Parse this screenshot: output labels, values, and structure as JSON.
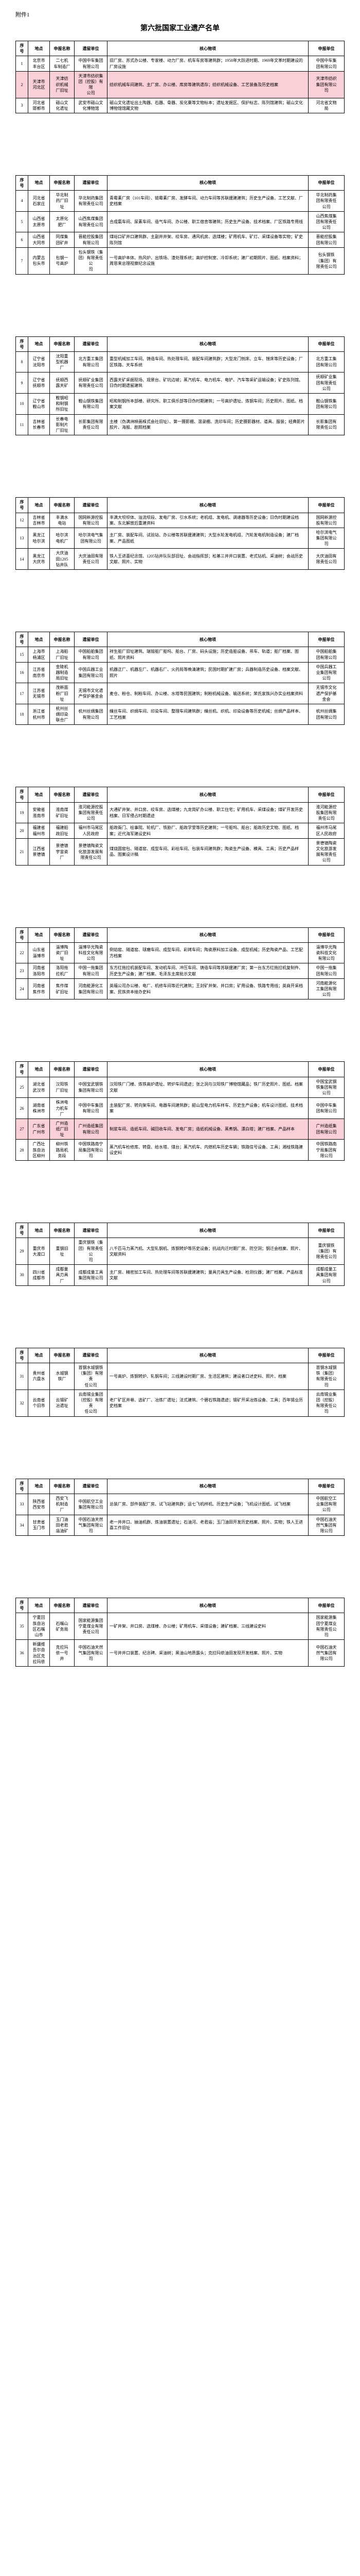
{
  "attachment_label": "附件1",
  "title": "第六批国家工业遗产名单",
  "headers": [
    "序号",
    "地点",
    "申报名称",
    "遗留单位",
    "核心物项",
    "申报单位"
  ],
  "colors": {
    "highlight_bg": "#f9cfd8",
    "border": "#000000",
    "text": "#000000",
    "bg": "#ffffff"
  },
  "fonts": {
    "body_pt": 8,
    "title_pt": 14,
    "label_pt": 11
  },
  "pages": [
    [
      {
        "seq": "1",
        "loc": "北京市\n丰台区",
        "name": "二七机\n车制造厂",
        "unit": "中国中车集团\n有限公司",
        "desc": "旧厂房、苏式办公楼、专家楼、动力厂房、机车车房等建筑群；1958年大跃进时期、1969年文革时期建设的厂房设施",
        "neg": "中国中车集\n团有限公司"
      },
      {
        "seq": "2",
        "loc": "天津市\n河北区",
        "name": "天津纺\n织机械\n厂旧址",
        "unit": "天津市纺织集\n团（控股）有限\n公司",
        "desc": "纺织机械车间建筑、主厂房、办公楼、库房等建筑遗存；纺织机械设备、工艺装备及历史档案",
        "neg": "天津市纺织\n集团有限公\n司",
        "highlight": true
      },
      {
        "seq": "3",
        "loc": "河北省\n邯郸市",
        "name": "磁山文\n化遗址",
        "unit": "武安市磁山文\n化博物馆",
        "desc": "磁山文化遗址出土陶器、石器、骨器、炭化粟等文物标本；遗址发掘区、保护标志、陈列馆建筑；磁山文化博物馆馆藏文物",
        "neg": "河北省文物\n局"
      }
    ],
    [
      {
        "seq": "4",
        "loc": "河北省\n石家庄",
        "name": "华北制\n药厂旧\n址",
        "unit": "华北制药集团\n有限责任公司",
        "desc": "青霉素厂房（101车间）、链霉素厂房、发酵车间、动力车间等苏联援建建筑；历史生产设备、工艺文献、厂史档案",
        "neg": "华北制药集\n团有限责任\n公司"
      },
      {
        "seq": "5",
        "loc": "山西省\n太原市",
        "name": "太原化\n肥厂",
        "unit": "山西焦煤集团\n有限责任公司",
        "desc": "合成氨车间、尿素车间、造气车间、办公楼、职工宿舍等建筑；历史生产设备、技术档案、厂区铁路专用线",
        "neg": "山西焦煤集\n团有限责任\n公司"
      },
      {
        "seq": "6",
        "loc": "山西省\n大同市",
        "name": "同煤集\n团矿井",
        "unit": "晋能控股集团\n有限公司",
        "desc": "煤峪口矿井口建筑群、主副井井架、绞车房、通风机房、选煤楼；矿用机车、矿灯、采煤设备等实物；矿史陈列馆",
        "neg": "晋能控股集\n团有限公司"
      },
      {
        "seq": "7",
        "loc": "内蒙古\n包头市",
        "name": "包钢一\n号高炉",
        "unit": "包头钢铁（集\n团）有限责任公\n司",
        "desc": "一号高炉本体、热风炉、出铁场、渣处理系统；高炉控制室、冷却系统；建厂初期照片、图纸、档案资料；周恩来总理视察纪念设施",
        "neg": "包头钢铁\n（集团）有\n限责任公司"
      }
    ],
    [
      {
        "seq": "8",
        "loc": "辽宁省\n沈阳市",
        "name": "沈阳重\n型机器\n厂",
        "unit": "北方重工集团\n有限公司",
        "desc": "重型机械加工车间、铸造车间、热处理车间、装配车间建筑群；大型龙门刨床、立车、镗床等历史设备；厂区铁路、天车系统",
        "neg": "北方重工集\n团有限公司"
      },
      {
        "seq": "9",
        "loc": "辽宁省\n抚顺市",
        "name": "抚顺西\n露天矿",
        "unit": "抚顺矿业集团\n有限责任公司",
        "desc": "西露天矿采掘现场、观景台、矿坑边坡；蒸汽机车、电力机车、电铲、汽车等采矿运输设备；矿史陈列馆、日伪时期遗留建筑",
        "neg": "抚顺矿业集\n团有限责任\n公司"
      },
      {
        "seq": "10",
        "loc": "辽宁省\n鞍山市",
        "name": "鞍钢昭\n和制钢\n所旧址",
        "unit": "鞍山钢铁集团\n有限公司",
        "desc": "昭和制钢所本部楼、研究所、职工俱乐部等日伪时期建筑；一号高炉遗址、炼钢车间；历史照片、图纸、档案文献",
        "neg": "鞍山钢铁集\n团有限公司"
      },
      {
        "seq": "11",
        "loc": "吉林省\n长春市",
        "name": "长春电\n影制片\n厂旧址",
        "unit": "长影集团有限\n责任公司",
        "desc": "主楼（伪满洲映画株式会社旧址）、第一摄影棚、混录棚、洗印车间；历史摄影器材、道具、服装；经典影片胶片、海报、剧照档案",
        "neg": "长影集团有\n限责任公司"
      }
    ],
    [
      {
        "seq": "12",
        "loc": "吉林省\n吉林市",
        "name": "丰满水\n电站",
        "unit": "国网新源控股\n有限公司",
        "desc": "丰满大坝坝体、溢流坝段、发电厂房、引水系统；老机组、发电机、调速器等历史设备；日伪时期建设档案、东北解放后重建资料",
        "neg": "国网新源控\n股有限公司"
      },
      {
        "seq": "13",
        "loc": "黑龙江\n哈尔滨",
        "name": "哈尔滨\n电机厂",
        "unit": "哈尔滨电气集\n团有限公司",
        "desc": "主厂房、装配车间、试验站、办公楼等苏联援建建筑；大型水轮发电机组、汽轮发电机制造设备；建厂档案、产品图纸",
        "neg": "哈尔滨电气\n集团有限公\n司"
      },
      {
        "seq": "14",
        "loc": "黑龙江\n大庆市",
        "name": "大庆油\n田1205\n钻井队",
        "unit": "大庆油田有限\n责任公司",
        "desc": "铁人王进喜纪念馆、1205钻井队队部旧址、会战指挥部；松基三井井口装置、老式钻机、采油树；会战历史文献、照片、实物",
        "neg": "大庆油田有\n限责任公司"
      }
    ],
    [
      {
        "seq": "15",
        "loc": "上海市\n杨浦区",
        "name": "上海船\n厂旧址",
        "unit": "中国船舶集团\n有限公司",
        "desc": "祥生船厂旧址建筑、瑞镕船厂船坞、船台、厂房、码头设施；历史造船设备、吊车、轨道；船厂档案、图纸、照片资料",
        "neg": "中国船舶集\n团有限公司"
      },
      {
        "seq": "16",
        "loc": "江苏省\n南京市",
        "name": "金陵机\n器制造\n局旧址",
        "unit": "中国兵器工业\n集团有限公司",
        "desc": "机器正厂、机器左厂、机器右厂、火药局等晚清建筑；民国时期扩建厂房；兵器制造历史设备、档案文献、照片",
        "neg": "中国兵器工\n业集团有限\n公司"
      },
      {
        "seq": "17",
        "loc": "江苏省\n无锡市",
        "name": "茂新面\n粉厂旧\n址",
        "unit": "无锡市文化遗\n产保护基金会",
        "desc": "麦仓、粉仓、制粉车间、办公楼、水塔等民国建筑；制粉机械设备、输送系统；荣氏家族兴办实业档案资料",
        "neg": "无锡市文化\n遗产保护基\n金会"
      },
      {
        "seq": "18",
        "loc": "浙江省\n杭州市",
        "name": "杭州丝\n绸印染\n联合厂",
        "unit": "杭州丝绸集团\n有限公司",
        "desc": "缫丝车间、织绸车间、印染车间、整理车间建筑群；缫丝机、织机、印染设备等历史机械；丝绸产品样本、工艺档案",
        "neg": "杭州丝绸集\n团有限公司"
      }
    ],
    [
      {
        "seq": "19",
        "loc": "安徽省\n淮南市",
        "name": "淮南煤\n矿旧址",
        "unit": "淮河能源控股\n集团有限责任\n公司",
        "desc": "大通矿井架、井口房、绞车房、选煤楼；九龙岗矿办公楼、职工住宅；矿用机车、采煤设备；煤矿开发历史档案、日军侵占时期遗迹",
        "neg": "淮河能源控\n股集团有限\n责任公司"
      },
      {
        "seq": "20",
        "loc": "福建省\n福州市",
        "name": "福建船\n政旧址",
        "unit": "福州市马尾区\n人民政府",
        "desc": "船政衙门、绘事院、轮机厂、铁胁厂、船政学堂等历史建筑；一号船坞、船台；船政历史文物、图纸、档案；近代海军建设史料",
        "neg": "福州市马尾\n区人民政府"
      },
      {
        "seq": "21",
        "loc": "江西省\n景德镇",
        "name": "景德镇\n宇宙瓷\n厂",
        "unit": "景德镇陶瓷文\n化旅游发展有\n限责任公司",
        "desc": "煤烧圆窑包、隧道窑、成型车间、彩绘车间、包装车间建筑群；陶瓷生产设备、模具、工具；历史产品样品、图案设计稿",
        "neg": "景德镇陶瓷\n文化旅游发\n展有限责任\n公司"
      }
    ],
    [
      {
        "seq": "22",
        "loc": "山东省\n淄博市",
        "name": "淄博陶\n瓷厂旧\n址",
        "unit": "淄博华光陶瓷\n科技文化有限\n公司",
        "desc": "倒焰窑、隧道窑、球磨车间、成型车间、彩烤车间；陶瓷原料加工设备、成型机械；历史陶瓷产品、工艺配方档案",
        "neg": "淄博华光陶\n瓷科技文化\n有限公司"
      },
      {
        "seq": "23",
        "loc": "河南省\n洛阳市",
        "name": "洛阳拖\n拉机厂",
        "unit": "中国一拖集团\n有限公司",
        "desc": "东方红拖拉机装配车间、发动机车间、冲压车间、铸造车间等苏联援建厂房；第一台东方红拖拉机复制件、历史生产设备；建厂档案、毛泽东主席批示文献",
        "neg": "中国一拖集\n团有限公司"
      },
      {
        "seq": "24",
        "loc": "河南省\n焦作市",
        "name": "焦作煤\n矿旧址",
        "unit": "河南能源化工\n集团有限公司",
        "desc": "英福公司办公楼、电厂、机修车间等近代建筑；王封矿井架、井口房；矿用设备、铁路专用线；英商开采档案、民族资本接办史料",
        "neg": "河南能源化\n工集团有限\n公司"
      }
    ],
    [
      {
        "seq": "25",
        "loc": "湖北省\n武汉市",
        "name": "汉阳铁\n厂旧址",
        "unit": "中国宝武钢铁\n集团有限公司",
        "desc": "汉阳铁厂门楼、炼铁高炉遗址、转炉车间遗迹；张之洞与汉阳铁厂博物馆藏品；铁厂历史照片、图纸、档案文献",
        "neg": "中国宝武钢\n铁集团有限\n公司"
      },
      {
        "seq": "26",
        "loc": "湖南省\n株洲市",
        "name": "株洲电\n力机车\n厂",
        "unit": "中国中车集团\n有限公司",
        "desc": "主装配厂房、转向架车间、电器车间建筑群；韶山型电力机车样车、历史生产设备；机车设计图纸、技术档案",
        "neg": "中国中车集\n团有限公司"
      },
      {
        "seq": "27",
        "loc": "广东省\n广州市",
        "name": "广州造\n纸厂旧\n址",
        "unit": "广州造纸集团\n有限公司",
        "desc": "制浆车间、造纸车间、碱回收车间、发电厂房；造纸机械设备、蒸煮锅、漂白塔；建厂档案、产品样本",
        "neg": "广州造纸集\n团有限公司",
        "highlight": true
      },
      {
        "seq": "28",
        "loc": "广西壮\n族自治\n区柳州",
        "name": "柳州铁\n路局机\n务段",
        "unit": "中国铁路南宁\n局集团有限公\n司",
        "desc": "蒸汽机车检修库、转盘、给水塔、煤台；蒸汽机车、内燃机车历史车辆；铁路信号设备、工具；湘桂铁路建设史料",
        "neg": "中国铁路南\n宁局集团有\n限公司"
      }
    ],
    [
      {
        "seq": "29",
        "loc": "重庆市\n大渡口",
        "name": "重钢旧\n址",
        "unit": "重庆钢铁（集\n团）有限责任公\n司",
        "desc": "八千匹马力蒸汽机、大型轧钢机、炼钢转炉等历史设备；抗战内迁时期厂房、防空洞；钢迁会档案、照片、文献资料",
        "neg": "重庆钢铁\n（集团）有\n限责任公司"
      },
      {
        "seq": "30",
        "loc": "四川省\n成都市",
        "name": "成都量\n具刃具\n厂",
        "unit": "成都成量工具\n集团有限公司",
        "desc": "主厂房、精密加工车间、热处理车间等苏联援建建筑；量具刃具生产设备、检测仪器；建厂档案、产品标准文献",
        "neg": "成都成量工\n具集团有限\n公司"
      }
    ],
    [
      {
        "seq": "31",
        "loc": "贵州省\n六盘水",
        "name": "水城钢\n铁厂",
        "unit": "首钢水城钢铁\n（集团）有限责\n任公司",
        "desc": "一号高炉、炼钢转炉、轧钢车间；三线建设时期厂房、生活区建筑；建设者口述史料、照片、档案",
        "neg": "首钢水城钢\n铁（集团）\n有限责任公\n司"
      },
      {
        "seq": "32",
        "loc": "云南省\n个旧市",
        "name": "云锡矿\n冶遗址",
        "unit": "云南锡业集团\n（控股）有限责\n任公司",
        "desc": "老厂矿区井巷、选矿厂、冶炼厂遗址；法式建筑、个碧石铁路遗迹；锡矿开采冶炼设备、工具；百年锡业历史档案",
        "neg": "云南锡业集\n团（控股）\n有限责任公\n司"
      }
    ],
    [
      {
        "seq": "33",
        "loc": "陕西省\n西安市",
        "name": "西安飞\n机制造\n厂",
        "unit": "中国航空工业\n集团有限公司",
        "desc": "总装厂房、部件装配厂房、试飞站建筑群；运七飞机样机、历史生产设备；飞机设计图纸、试飞档案",
        "neg": "中国航空工\n业集团有限\n公司"
      },
      {
        "seq": "34",
        "loc": "甘肃省\n玉门市",
        "name": "玉门油\n田老君\n庙油矿",
        "unit": "中国石油天然\n气集团有限公\n司",
        "desc": "老一井井口、抽油机群、炼油装置遗址；石油河、老君庙；玉门油田开发历史档案、照片、实物；铁人王进喜工作旧址",
        "neg": "中国石油天\n然气集团有\n限公司"
      }
    ],
    [
      {
        "seq": "35",
        "loc": "宁夏回\n族自治\n区石嘴\n山市",
        "name": "石嘴山\n矿务局",
        "unit": "国家能源集团\n宁夏煤业有限\n责任公司",
        "desc": "一矿井架、井口房、选煤楼、办公楼；矿用机车、采煤设备；建矿档案、三线建设史料",
        "neg": "国家能源集\n团宁夏煤业\n有限责任公\n司"
      },
      {
        "seq": "36",
        "loc": "新疆维\n吾尔自\n治区克\n拉玛依",
        "name": "克拉玛\n依一号\n井",
        "unit": "中国石油天然\n气集团有限公\n司",
        "desc": "一号井井口装置、纪念碑、采油树；黑油山地质露头；克拉玛依油田发现开发档案、照片、实物",
        "neg": "中国石油天\n然气集团有\n限公司"
      }
    ]
  ]
}
